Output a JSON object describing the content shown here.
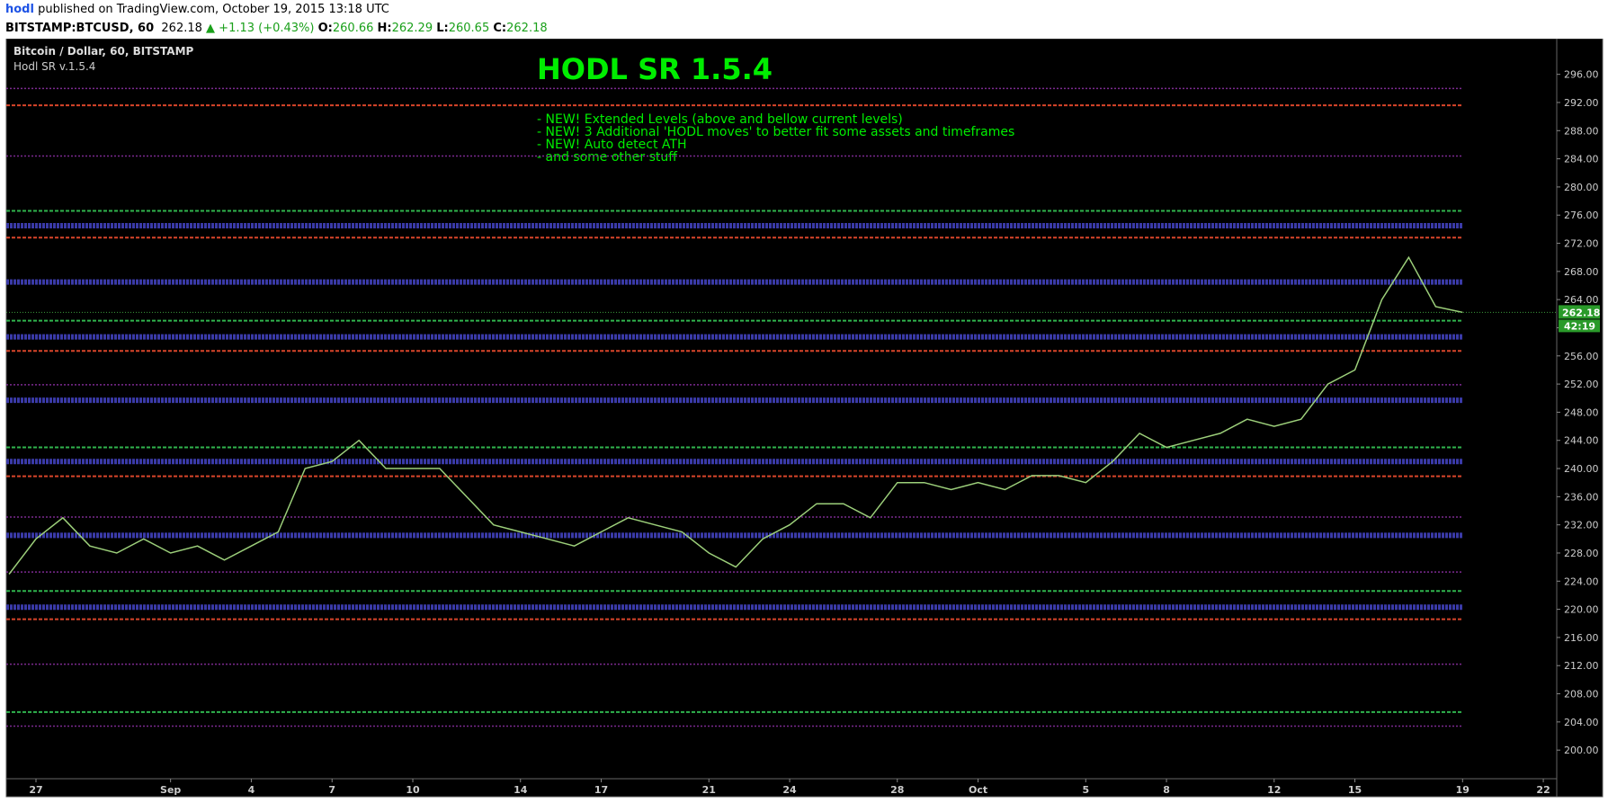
{
  "header": {
    "author": "hodl",
    "published": "published on TradingView.com, October 19, 2015 13:18 UTC",
    "symbol": "BITSTAMP:BTCUSD, 60",
    "price": "262.18",
    "change": "▲ +1.13 (+0.43%)",
    "o_label": "O:",
    "o": "260.66",
    "h_label": "H:",
    "h": "262.29",
    "l_label": "L:",
    "l": "260.65",
    "c_label": "C:",
    "c": "262.18"
  },
  "chart_data": {
    "type": "line",
    "legend_title": "Bitcoin / Dollar, 60, BITSTAMP",
    "indicator": "Hodl SR v.1.5.4",
    "annotation_title": "HODL SR 1.5.4",
    "annotations": [
      "- NEW! Extended Levels (above and bellow current levels)",
      "- NEW! 3 Additional 'HODL moves' to better fit some assets and timeframes",
      "- NEW! Auto detect ATH",
      "- and some other stuff"
    ],
    "categories": [
      null,
      "27",
      null,
      null,
      null,
      null,
      "Sep",
      null,
      null,
      "4",
      null,
      null,
      "7",
      null,
      null,
      "10",
      null,
      null,
      null,
      "14",
      null,
      null,
      "17",
      null,
      null,
      null,
      "21",
      null,
      null,
      "24",
      null,
      null,
      null,
      "28",
      null,
      null,
      "Oct",
      null,
      null,
      null,
      "5",
      null,
      null,
      "8",
      null,
      null,
      null,
      "12",
      null,
      null,
      "15",
      null,
      null,
      null,
      "19",
      null,
      null,
      "22"
    ],
    "series": [
      {
        "color": "#9ccf7a",
        "values": [
          225,
          230,
          233,
          229,
          228,
          230,
          228,
          229,
          227,
          229,
          231,
          240,
          241,
          244,
          240,
          240,
          240,
          236,
          232,
          231,
          230,
          229,
          231,
          233,
          232,
          231,
          228,
          226,
          230,
          232,
          235,
          235,
          233,
          238,
          238,
          237,
          238,
          237,
          239,
          239,
          238,
          241,
          245,
          243,
          244,
          245,
          247,
          246,
          247,
          252,
          254,
          264,
          270,
          263,
          262.18,
          null,
          null,
          null
        ]
      }
    ],
    "level_sets": [
      {
        "color": "#3a3aa8",
        "values": [
          220.3,
          230.5,
          241,
          249.7,
          258.7,
          266.5,
          274.5
        ]
      },
      {
        "color": "#d8452a",
        "values": [
          218.6,
          238.9,
          256.7,
          272.8,
          291.6
        ]
      },
      {
        "color": "#2fb34d",
        "values": [
          205.4,
          222.6,
          243,
          261,
          276.6
        ]
      },
      {
        "color": "#7b2a90",
        "values": [
          203.4,
          212.2,
          225.3,
          233.1,
          251.9,
          284.4,
          294
        ]
      }
    ],
    "last_price": 262.18,
    "countdown": "42:19",
    "ylim": [
      199,
      298
    ],
    "yticks": [
      {
        "value": 200,
        "label": "200.00"
      },
      {
        "value": 204,
        "label": "204.00"
      },
      {
        "value": 208,
        "label": "208.00"
      },
      {
        "value": 212,
        "label": "212.00"
      },
      {
        "value": 216,
        "label": "216.00"
      },
      {
        "value": 220,
        "label": "220.00"
      },
      {
        "value": 224,
        "label": "224.00"
      },
      {
        "value": 228,
        "label": "228.00"
      },
      {
        "value": 232,
        "label": "232.00"
      },
      {
        "value": 236,
        "label": "236.00"
      },
      {
        "value": 240,
        "label": "240.00"
      },
      {
        "value": 244,
        "label": "244.00"
      },
      {
        "value": 248,
        "label": "248.00"
      },
      {
        "value": 252,
        "label": "252.00"
      },
      {
        "value": 256,
        "label": "256.00"
      },
      {
        "value": 260,
        "label": "260.00"
      },
      {
        "value": 264,
        "label": "264.00"
      },
      {
        "value": 268,
        "label": "268.00"
      },
      {
        "value": 272,
        "label": "272.00"
      },
      {
        "value": 276,
        "label": "276.00"
      },
      {
        "value": 280,
        "label": "280.00"
      },
      {
        "value": 284,
        "label": "284.00"
      },
      {
        "value": 288,
        "label": "288.00"
      },
      {
        "value": 292,
        "label": "292.00"
      },
      {
        "value": 296,
        "label": "296.00"
      }
    ]
  }
}
